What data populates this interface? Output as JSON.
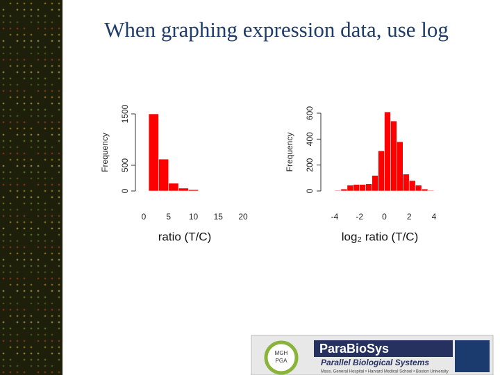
{
  "slide": {
    "title": "When graphing expression data, use log"
  },
  "chart_data": [
    {
      "type": "histogram",
      "y_label": "Frequency",
      "x_label": "ratio (T/C)",
      "color": "#ff0000",
      "bins": [
        1,
        3,
        5,
        7,
        9,
        11
      ],
      "values": [
        1500,
        620,
        150,
        55,
        25
      ],
      "xlim": [
        0,
        20
      ],
      "xticks": [
        0,
        5,
        10,
        15,
        20
      ],
      "ylim": [
        0,
        1500
      ],
      "yticks": [
        0,
        500,
        1500
      ]
    },
    {
      "type": "histogram",
      "y_label": "Frequency",
      "x_label": "log₂ ratio (T/C)",
      "color": "#ff0000",
      "bins": [
        -4,
        -3.5,
        -3,
        -2.5,
        -2,
        -1.5,
        -1,
        -0.5,
        0,
        0.5,
        1,
        1.5,
        2,
        2.5,
        3,
        3.5,
        4
      ],
      "values": [
        5,
        15,
        45,
        50,
        50,
        55,
        120,
        310,
        610,
        540,
        380,
        130,
        80,
        45,
        15,
        5
      ],
      "xlim": [
        -4,
        4
      ],
      "xticks": [
        -4,
        -2,
        0,
        2,
        4
      ],
      "ylim": [
        0,
        600
      ],
      "yticks": [
        0,
        200,
        400,
        600
      ]
    }
  ],
  "logo": {
    "badge_lines": [
      "MGH",
      "PGA"
    ],
    "name": "ParaBioSys",
    "tagline": "Parallel Biological Systems",
    "affiliations": "Mass. General Hospital • Harvard Medical School • Boston University"
  }
}
